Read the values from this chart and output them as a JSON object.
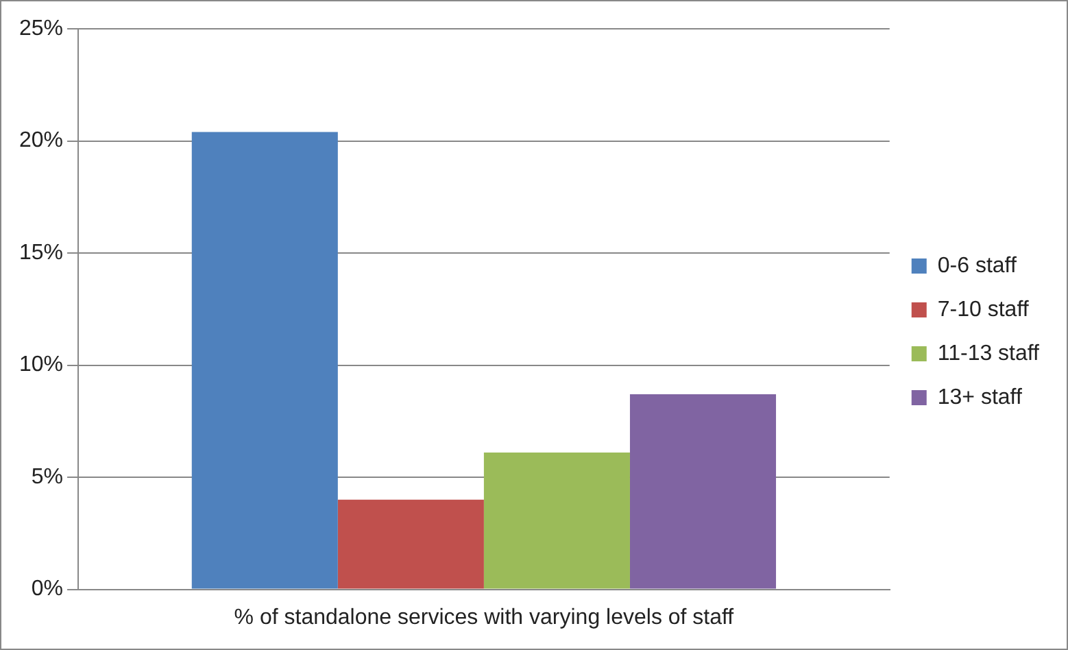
{
  "chart_data": {
    "type": "bar",
    "categories": [
      "% of standalone services with varying levels of staff"
    ],
    "series": [
      {
        "name": "0-6 staff",
        "color": "#4f81bd",
        "values": [
          20.4
        ]
      },
      {
        "name": "7-10 staff",
        "color": "#c0504d",
        "values": [
          4.0
        ]
      },
      {
        "name": "11-13 staff",
        "color": "#9bbb59",
        "values": [
          6.1
        ]
      },
      {
        "name": "13+ staff",
        "color": "#8064a2",
        "values": [
          8.7
        ]
      }
    ],
    "ylim": [
      0,
      25
    ],
    "yticks": [
      {
        "value": 0,
        "label": "0%"
      },
      {
        "value": 5,
        "label": "5%"
      },
      {
        "value": 10,
        "label": "10%"
      },
      {
        "value": 15,
        "label": "15%"
      },
      {
        "value": 20,
        "label": "20%"
      },
      {
        "value": 25,
        "label": "25%"
      }
    ],
    "grid": "y",
    "legend": "right"
  }
}
